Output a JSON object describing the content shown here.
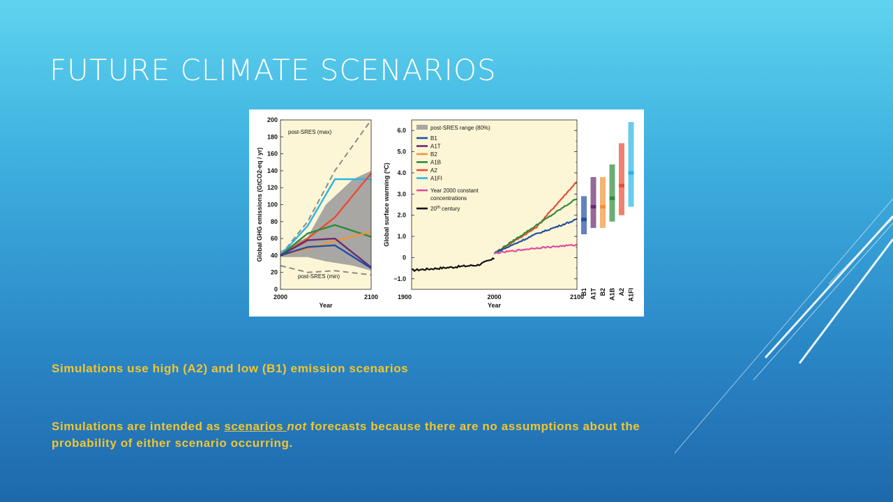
{
  "slide": {
    "title": "FUTURE CLIMATE SCENARIOS",
    "bullet1": "Simulations use high (A2) and low (B1) emission scenarios",
    "bullet2": {
      "part1": "Simulations are intended as ",
      "underlined": "scenarios ",
      "italic": "not",
      "part2": " forecasts because there are no assumptions about the probability of either scenario occurring."
    }
  },
  "colors": {
    "B1": "#1f4fa0",
    "A1T": "#6a2a6e",
    "B2": "#f39437",
    "A1B": "#2e8a3a",
    "A2": "#ec4a32",
    "A1FI": "#29b6e4",
    "const": "#e04ba0",
    "c20": "#111111",
    "range": "#a9a7a4",
    "bg": "#fcf6d6"
  },
  "chart_data": [
    {
      "type": "line",
      "xlabel": "Year",
      "ylabel": "Global GHG emissions (GtCO2-eq / yr)",
      "xlim": [
        2000,
        2100
      ],
      "ylim": [
        0,
        200
      ],
      "x_ticks": [
        "2000",
        "2100"
      ],
      "y_ticks": [
        "0",
        "20",
        "40",
        "60",
        "80",
        "100",
        "120",
        "140",
        "160",
        "180",
        "200"
      ],
      "annotations": [
        "post-SRES (max)",
        "post-SRES (min)"
      ],
      "x": [
        2000,
        2030,
        2060,
        2100
      ],
      "series": [
        {
          "name": "post-SRES (max)",
          "values": [
            40,
            80,
            140,
            200
          ],
          "style": "dashed"
        },
        {
          "name": "post-SRES (min)",
          "values": [
            28,
            20,
            22,
            17
          ],
          "style": "dashed"
        },
        {
          "name": "A1FI",
          "values": [
            40,
            75,
            130,
            130
          ]
        },
        {
          "name": "A2",
          "values": [
            40,
            60,
            85,
            137
          ]
        },
        {
          "name": "A1B",
          "values": [
            40,
            66,
            76,
            62
          ]
        },
        {
          "name": "B2",
          "values": [
            40,
            48,
            57,
            68
          ]
        },
        {
          "name": "A1T",
          "values": [
            40,
            58,
            60,
            26
          ]
        },
        {
          "name": "B1",
          "values": [
            40,
            50,
            52,
            25
          ]
        }
      ]
    },
    {
      "type": "line",
      "xlabel": "Year",
      "ylabel": "Global surface warming (ºC)",
      "xlim": [
        1900,
        2100
      ],
      "ylim": [
        -1.5,
        6.5
      ],
      "x_ticks": [
        "1900",
        "2000",
        "2100"
      ],
      "y_ticks": [
        "6.0",
        "5.0",
        "4.0",
        "3.0",
        "2.0",
        "1.0",
        "0",
        "−1.0"
      ],
      "legend": {
        "range": "post-SRES range (80%)",
        "items": [
          "B1",
          "A1T",
          "B2",
          "A1B",
          "A2",
          "A1FI"
        ],
        "const_line1": "Year 2000 constant",
        "const_line2": "concentrations",
        "c20_prefix": "20",
        "c20_sup": "th",
        "c20_suffix": " century"
      },
      "x": [
        2000,
        2050,
        2100
      ],
      "series": [
        {
          "name": "20th century",
          "x": [
            1900,
            1950,
            1980,
            2000
          ],
          "values": [
            -0.6,
            -0.45,
            -0.35,
            -0.05
          ]
        },
        {
          "name": "A2",
          "values": [
            0.2,
            1.4,
            3.6
          ]
        },
        {
          "name": "A1B",
          "values": [
            0.2,
            1.5,
            2.8
          ]
        },
        {
          "name": "B1",
          "values": [
            0.2,
            1.1,
            1.8
          ]
        },
        {
          "name": "Year 2000 constant concentrations",
          "values": [
            0.2,
            0.45,
            0.6
          ]
        }
      ],
      "ranges": [
        {
          "name": "B1",
          "low": 1.1,
          "high": 2.9,
          "best": 1.8
        },
        {
          "name": "A1T",
          "low": 1.4,
          "high": 3.8,
          "best": 2.4
        },
        {
          "name": "B2",
          "low": 1.4,
          "high": 3.8,
          "best": 2.4
        },
        {
          "name": "A1B",
          "low": 1.7,
          "high": 4.4,
          "best": 2.8
        },
        {
          "name": "A2",
          "low": 2.0,
          "high": 5.4,
          "best": 3.4
        },
        {
          "name": "A1FI",
          "low": 2.4,
          "high": 6.4,
          "best": 4.0
        }
      ]
    }
  ]
}
